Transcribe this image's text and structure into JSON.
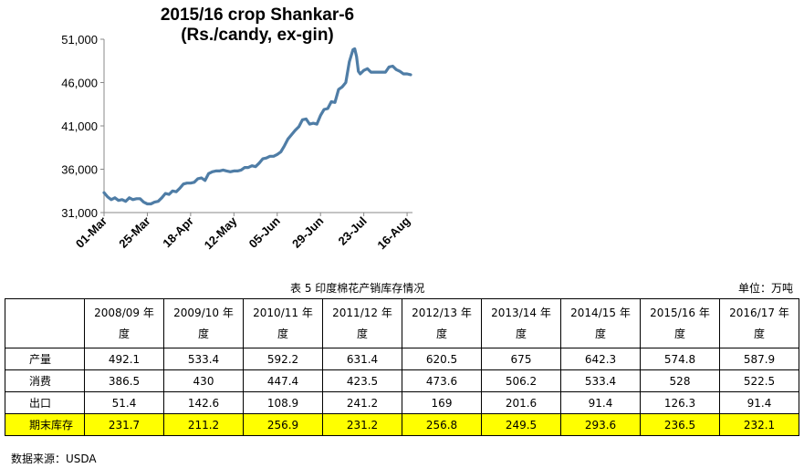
{
  "chart_data": {
    "type": "line",
    "title_line1": "2015/16 crop Shankar-6",
    "title_line2": "(Rs./candy, ex-gin)",
    "ylim": [
      31000,
      51000
    ],
    "yticks": [
      "31,000",
      "36,000",
      "41,000",
      "46,000",
      "51,000"
    ],
    "ytick_values": [
      31000,
      36000,
      41000,
      46000,
      51000
    ],
    "xticks": [
      "01-Mar",
      "25-Mar",
      "18-Apr",
      "12-May",
      "05-Jun",
      "29-Jun",
      "23-Jul",
      "16-Aug"
    ],
    "xtick_days": [
      0,
      24,
      48,
      72,
      96,
      120,
      144,
      168
    ],
    "x_end_day": 171,
    "line_color": "#4f7da6",
    "series": [
      {
        "values": [
          [
            0,
            33300
          ],
          [
            2,
            32800
          ],
          [
            4,
            32500
          ],
          [
            6,
            32700
          ],
          [
            8,
            32400
          ],
          [
            10,
            32500
          ],
          [
            12,
            32300
          ],
          [
            14,
            32700
          ],
          [
            16,
            32500
          ],
          [
            18,
            32600
          ],
          [
            20,
            32600
          ],
          [
            22,
            32200
          ],
          [
            24,
            32000
          ],
          [
            26,
            32000
          ],
          [
            28,
            32200
          ],
          [
            30,
            32300
          ],
          [
            32,
            32700
          ],
          [
            34,
            33200
          ],
          [
            36,
            33100
          ],
          [
            38,
            33500
          ],
          [
            40,
            33400
          ],
          [
            42,
            33800
          ],
          [
            44,
            34300
          ],
          [
            46,
            34400
          ],
          [
            48,
            34400
          ],
          [
            50,
            34500
          ],
          [
            52,
            34900
          ],
          [
            54,
            35000
          ],
          [
            56,
            34700
          ],
          [
            58,
            35500
          ],
          [
            60,
            35700
          ],
          [
            62,
            35800
          ],
          [
            64,
            35800
          ],
          [
            66,
            35900
          ],
          [
            68,
            35800
          ],
          [
            70,
            35700
          ],
          [
            72,
            35800
          ],
          [
            74,
            35800
          ],
          [
            76,
            35900
          ],
          [
            78,
            36200
          ],
          [
            80,
            36200
          ],
          [
            82,
            36400
          ],
          [
            84,
            36300
          ],
          [
            86,
            36700
          ],
          [
            88,
            37200
          ],
          [
            90,
            37300
          ],
          [
            92,
            37500
          ],
          [
            94,
            37500
          ],
          [
            96,
            37700
          ],
          [
            98,
            38000
          ],
          [
            100,
            38700
          ],
          [
            102,
            39500
          ],
          [
            104,
            40000
          ],
          [
            106,
            40500
          ],
          [
            108,
            40900
          ],
          [
            110,
            41700
          ],
          [
            112,
            41800
          ],
          [
            114,
            41200
          ],
          [
            116,
            41300
          ],
          [
            118,
            41200
          ],
          [
            120,
            42200
          ],
          [
            122,
            42900
          ],
          [
            124,
            43000
          ],
          [
            126,
            43800
          ],
          [
            128,
            43700
          ],
          [
            130,
            45200
          ],
          [
            132,
            45500
          ],
          [
            134,
            46000
          ],
          [
            136,
            48400
          ],
          [
            138,
            49800
          ],
          [
            139,
            49900
          ],
          [
            140,
            49000
          ],
          [
            141,
            47300
          ],
          [
            142,
            47000
          ],
          [
            144,
            47400
          ],
          [
            146,
            47600
          ],
          [
            148,
            47200
          ],
          [
            150,
            47200
          ],
          [
            152,
            47200
          ],
          [
            154,
            47200
          ],
          [
            156,
            47200
          ],
          [
            158,
            47800
          ],
          [
            160,
            47900
          ],
          [
            162,
            47500
          ],
          [
            164,
            47300
          ],
          [
            166,
            47000
          ],
          [
            168,
            47000
          ],
          [
            170,
            46900
          ]
        ]
      }
    ]
  },
  "caption": "表 5  印度棉花产销库存情况",
  "unit": "单位：万吨",
  "table": {
    "headers": [
      "",
      "2008/09 年\n度",
      "2009/10 年\n度",
      "2010/11 年\n度",
      "2011/12 年\n度",
      "2012/13 年\n度",
      "2013/14 年\n度",
      "2014/15 年\n度",
      "2015/16 年\n度",
      "2016/17 年\n度"
    ],
    "rows": [
      {
        "label": "产量",
        "values": [
          "492.1",
          "533.4",
          "592.2",
          "631.4",
          "620.5",
          "675",
          "642.3",
          "574.8",
          "587.9"
        ]
      },
      {
        "label": "消费",
        "values": [
          "386.5",
          "430",
          "447.4",
          "423.5",
          "473.6",
          "506.2",
          "533.4",
          "528",
          "522.5"
        ]
      },
      {
        "label": "出口",
        "values": [
          "51.4",
          "142.6",
          "108.9",
          "241.2",
          "169",
          "201.6",
          "91.4",
          "126.3",
          "91.4"
        ]
      },
      {
        "label": "期末库存",
        "values": [
          "231.7",
          "211.2",
          "256.9",
          "231.2",
          "256.8",
          "249.5",
          "293.6",
          "236.5",
          "232.1"
        ],
        "highlight": true
      }
    ]
  },
  "source": "数据来源：USDA"
}
